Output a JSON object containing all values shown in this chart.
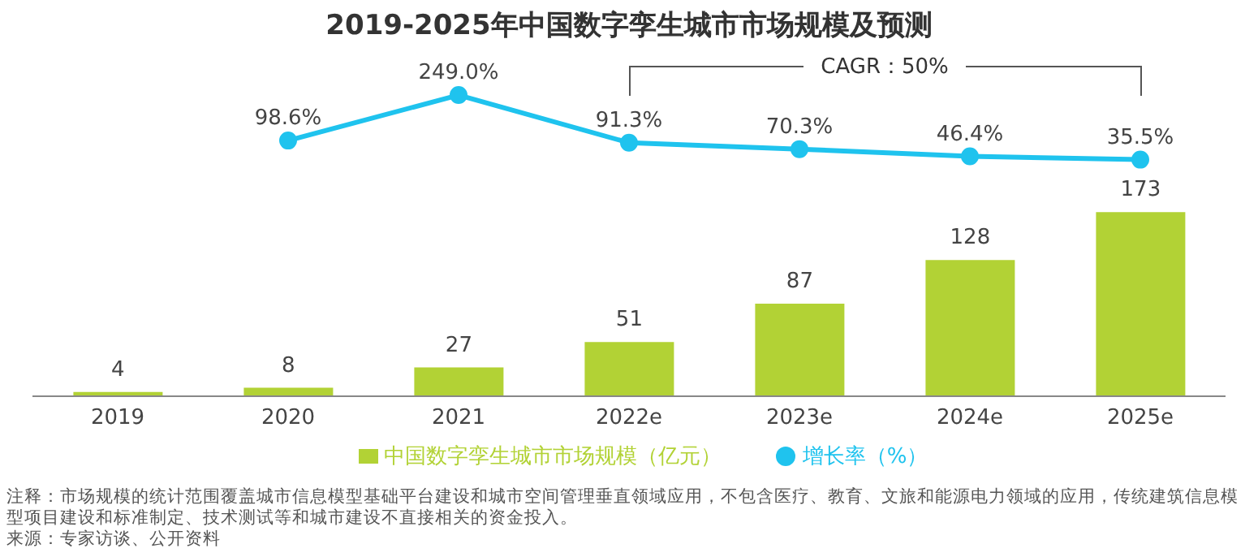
{
  "chart_data": [
    {
      "type": "line",
      "title": "2019-2025年中国数字孪生城市市场规模及预测",
      "categories": [
        null,
        null,
        null,
        null,
        null,
        null,
        null
      ],
      "series": [
        {
          "name": "增长率（%）",
          "color": "#1fc3ee",
          "values": [
            null,
            98.6,
            249.0,
            91.3,
            70.3,
            46.4,
            35.5
          ],
          "value_labels": [
            null,
            "98.6%",
            "249.0%",
            "91.3%",
            "70.3%",
            "46.4%",
            "35.5%"
          ]
        }
      ],
      "tick_labels": false,
      "legend": "bottom",
      "marker": "circle"
    },
    {
      "type": "bar",
      "categories": [
        "2019",
        "2020",
        "2021",
        "2022e",
        "2023e",
        "2024e",
        "2025e"
      ],
      "series": [
        {
          "name": "中国数字孪生城市市场规模（亿元）",
          "color": "#b2d235",
          "values": [
            4,
            8,
            27,
            51,
            87,
            128,
            173
          ]
        }
      ],
      "data_labels": true,
      "tick_labels": "x",
      "legend": "bottom",
      "annotations": [
        "CAGR：50%",
        "注释：市场规模的统计范围覆盖城市信息模型基础平台建设和城市空间管理垂直领域应用，不包含医疗、教育、文旅和能源电力领域的应用，传统建筑信息模型项目建设和标准制定、技术测试等和城市建设不直接相关的资金投入。",
        "来源：专家访谈、公开资料"
      ]
    }
  ]
}
